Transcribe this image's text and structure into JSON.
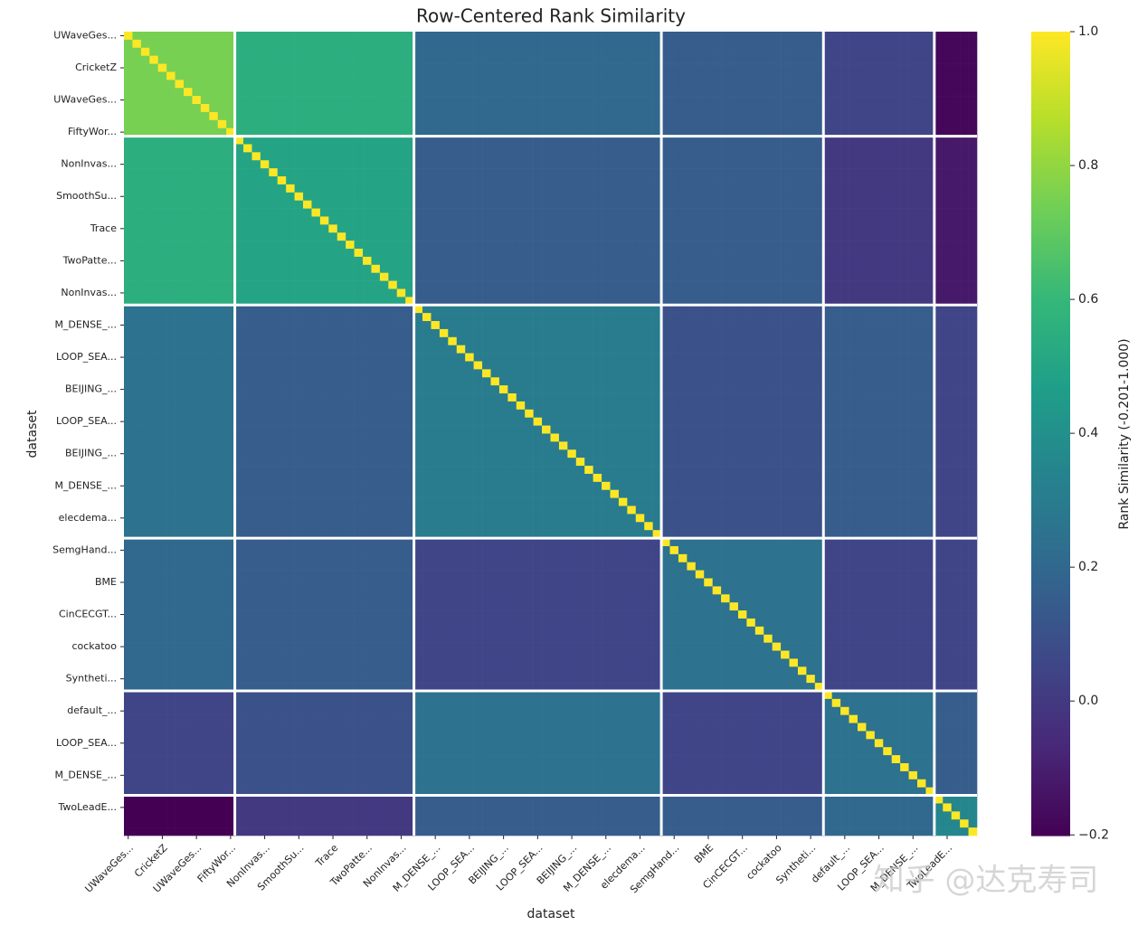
{
  "chart_data": {
    "type": "heatmap",
    "title": "Row-Centered Rank Similarity",
    "xlabel": "dataset",
    "ylabel": "dataset",
    "colorbar_label": "Rank Similarity (-0.201-1.000)",
    "colormap": "viridis",
    "clim": [
      -0.201,
      1.0
    ],
    "cticks": [
      {
        "value": -0.2,
        "label": "−0.2"
      },
      {
        "value": 0.0,
        "label": "0.0"
      },
      0.2,
      0.4,
      0.6,
      0.8,
      {
        "value": 1.0,
        "label": "1.0"
      }
    ],
    "labels": [
      "UWaveGes...",
      "CricketZ",
      "UWaveGes...",
      "FiftyWor...",
      "NonInvas...",
      "SmoothSu...",
      "Trace",
      "TwoPatte...",
      "NonInvas...",
      "M_DENSE_...",
      "LOOP_SEA...",
      "BEIJING_...",
      "LOOP_SEA...",
      "BEIJING_...",
      "M_DENSE_...",
      "elecdema...",
      "SemgHand...",
      "BME",
      "CinCECGT...",
      "cockatoo",
      "Syntheti...",
      "default_...",
      "LOOP_SEA...",
      "M_DENSE_...",
      "TwoLeadE..."
    ],
    "separators": [
      13,
      34,
      63,
      82,
      95
    ],
    "block_values": [
      [
        0.75,
        0.55,
        0.2,
        0.15,
        0.05,
        -0.18
      ],
      [
        0.55,
        0.5,
        0.15,
        0.15,
        0.0,
        -0.12
      ],
      [
        0.25,
        0.15,
        0.3,
        0.1,
        0.15,
        0.05
      ],
      [
        0.2,
        0.15,
        0.05,
        0.25,
        0.05,
        0.05
      ],
      [
        0.05,
        0.1,
        0.25,
        0.05,
        0.25,
        0.15
      ],
      [
        -0.2,
        0.0,
        0.15,
        0.15,
        0.2,
        0.35
      ]
    ],
    "diagonal": 1.0,
    "watermark": "知乎 @达克寿司"
  }
}
